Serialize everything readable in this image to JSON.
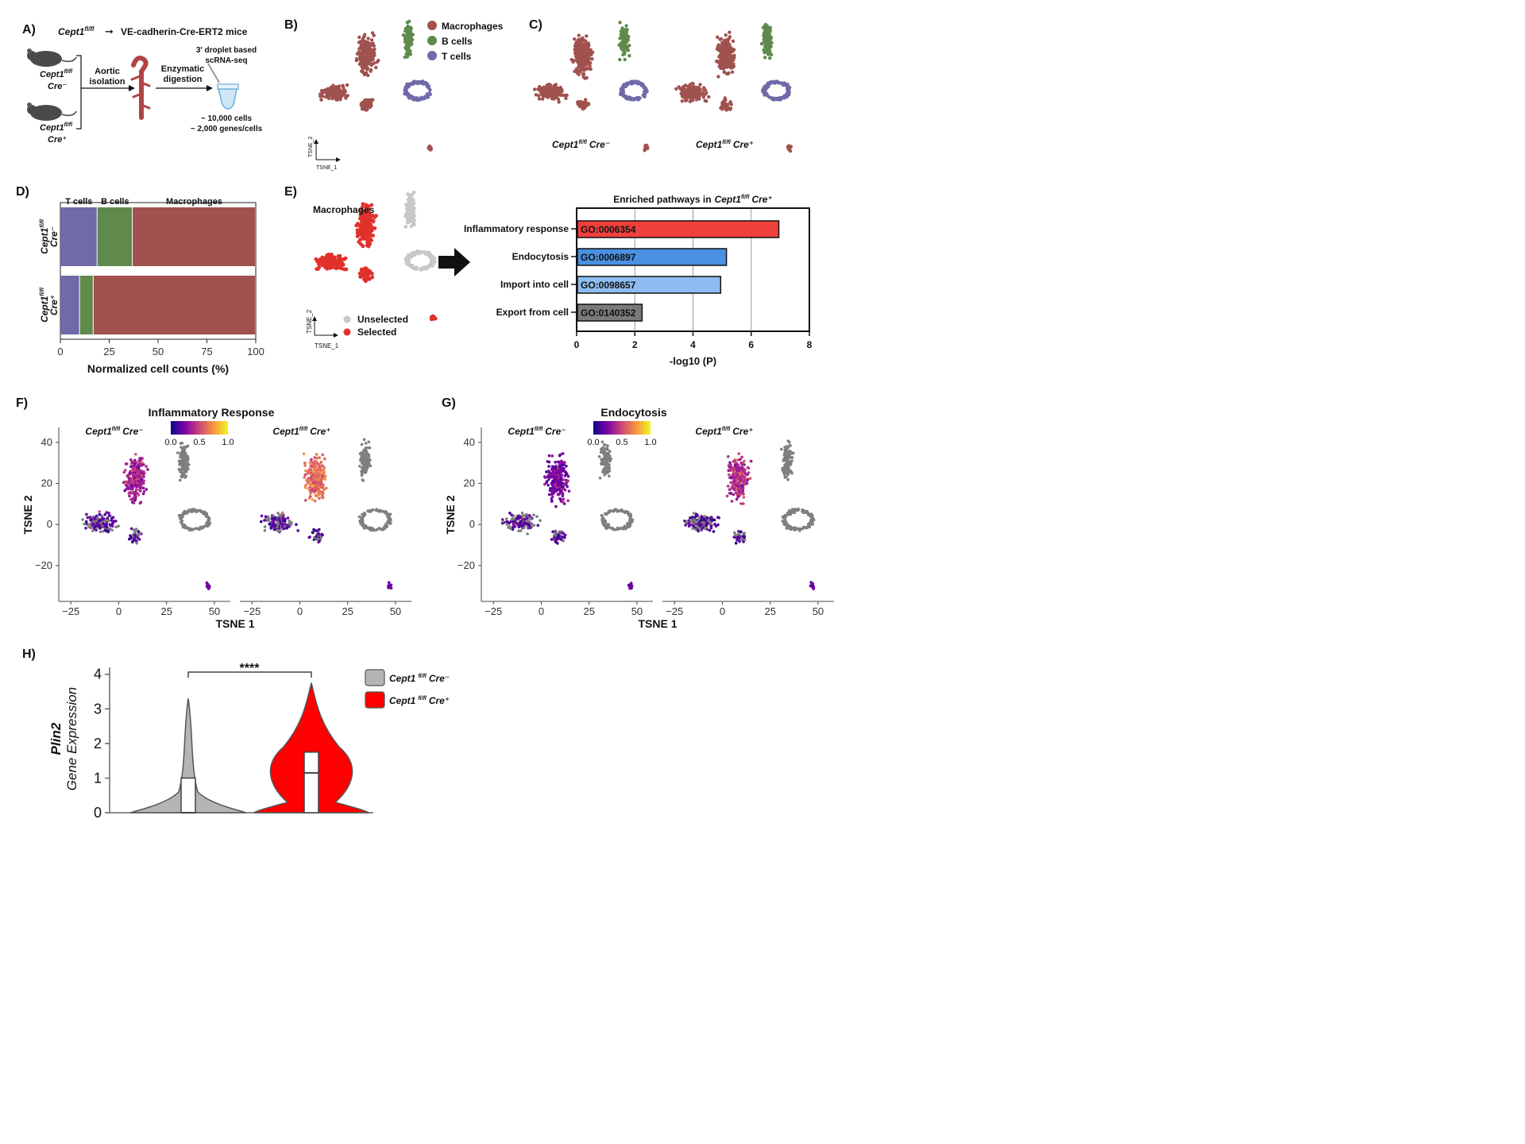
{
  "panels": {
    "A": "A)",
    "B": "B)",
    "C": "C)",
    "D": "D)",
    "E": "E)",
    "F": "F)",
    "G": "G)",
    "H": "H)"
  },
  "panelA": {
    "genotype": "Cept1",
    "fl": "fl/fl",
    "arrow_target": "VE-cadherin-Cre-ERT2 mice",
    "mouse1_gene": "Cept1",
    "mouse1_sup": "fl/fl",
    "mouse1_cre": "Cre⁻",
    "mouse2_gene": "Cept1",
    "mouse2_sup": "fl/fl",
    "mouse2_cre": "Cre⁺",
    "step1_line1": "Aortic",
    "step1_line2": "isolation",
    "step2_line1": "Enzymatic",
    "step2_line2": "digestion",
    "method_line1": "3' droplet based",
    "method_line2": "scRNA-seq",
    "stat1": "~ 10,000 cells",
    "stat2": "~ 2,000 genes/cells"
  },
  "colors": {
    "macrophages": "#a0524f",
    "b_cells": "#5f8a4c",
    "t_cells": "#6f6aa8",
    "unselected": "#c8c8c8",
    "selected": "#e0312b",
    "inflammatory": "#f0403c",
    "endocytosis": "#4a90e2",
    "import": "#8cbcf0",
    "export": "#7a7a7a",
    "violin_cre_neg": "#b5b5b5",
    "violin_cre_pos": "#ff0000"
  },
  "panelB": {
    "legend": [
      "Macrophages",
      "B cells",
      "T cells"
    ],
    "axis_x": "TSNE_1",
    "axis_y": "TSNE_2"
  },
  "panelC": {
    "label_left": "Cept1",
    "label_left_sup": "fl/fl",
    "label_left_cre": "Cre⁻",
    "label_right": "Cept1",
    "label_right_sup": "fl/fl",
    "label_right_cre": "Cre⁺"
  },
  "chart_data": [
    {
      "panel": "D",
      "type": "bar",
      "orientation": "horizontal-stacked",
      "categories": [
        "Cept1 fl/fl Cre⁻",
        "Cept1 fl/fl Cre⁺"
      ],
      "row_gene": [
        "Cept1",
        "Cept1"
      ],
      "row_sup": [
        "fl/fl",
        "fl/fl"
      ],
      "row_cre": [
        "Cre⁻",
        "Cre⁺"
      ],
      "series": [
        {
          "name": "T cells",
          "values": [
            19,
            10
          ]
        },
        {
          "name": "B cells",
          "values": [
            18,
            7
          ]
        },
        {
          "name": "Macrophages",
          "values": [
            63,
            83
          ]
        }
      ],
      "xlabel": "Normalized cell counts (%)",
      "xlim": [
        0,
        100
      ],
      "xticks": [
        0,
        25,
        50,
        75,
        100
      ]
    },
    {
      "panel": "E",
      "type": "bar",
      "orientation": "horizontal",
      "title_prefix": "Enriched pathways in",
      "title_gene": "Cept1",
      "title_sup": "fl/fl",
      "title_cre": "Cre⁺",
      "categories": [
        "Inflammatory response",
        "Endocytosis",
        "Import into cell",
        "Export from cell"
      ],
      "go_ids": [
        "GO:0006354",
        "GO:0006897",
        "GO:0098657",
        "GO:0140352"
      ],
      "values": [
        6.95,
        5.15,
        4.95,
        2.25
      ],
      "xlabel": "-log10 (P)",
      "xlim": [
        0,
        8
      ],
      "xticks": [
        0,
        2,
        4,
        6,
        8
      ],
      "grid": true
    },
    {
      "panel": "F",
      "type": "scatter",
      "title": "Inflammatory Response",
      "colorbar_ticks": [
        "0.0",
        "0.5",
        "1.0"
      ],
      "left_label": "Cept1",
      "left_sup": "fl/fl",
      "left_cre": "Cre⁻",
      "right_label": "Cept1",
      "right_sup": "fl/fl",
      "right_cre": "Cre⁺",
      "xlabel": "TSNE 1",
      "ylabel": "TSNE 2",
      "xticks": [
        "−25",
        "0",
        "25",
        "50"
      ],
      "yticks": [
        "40",
        "20",
        "0",
        "−20"
      ]
    },
    {
      "panel": "G",
      "type": "scatter",
      "title": "Endocytosis",
      "colorbar_ticks": [
        "0.0",
        "0.5",
        "1.0"
      ],
      "left_label": "Cept1",
      "left_sup": "fl/fl",
      "left_cre": "Cre⁻",
      "right_label": "Cept1",
      "right_sup": "fl/fl",
      "right_cre": "Cre⁺",
      "xlabel": "TSNE 1",
      "ylabel": "TSNE 2",
      "xticks": [
        "−25",
        "0",
        "25",
        "50"
      ],
      "yticks": [
        "40",
        "20",
        "0",
        "−20"
      ]
    },
    {
      "panel": "H",
      "type": "violin",
      "ylabel_gene": "Plin2",
      "ylabel": "Gene Expression",
      "ylim": [
        0,
        4.2
      ],
      "yticks": [
        "0",
        "1",
        "2",
        "3",
        "4"
      ],
      "significance": "****",
      "groups": [
        {
          "gene": "Cept1",
          "sup": "fl/fl",
          "cre": "Cre⁻",
          "max": 3.3,
          "q1": 0.0,
          "median": 0.0,
          "q3": 1.0
        },
        {
          "gene": "Cept1",
          "sup": "fl/fl",
          "cre": "Cre⁺",
          "max": 3.75,
          "q1": 0.0,
          "median": 1.15,
          "q3": 1.75
        }
      ]
    }
  ],
  "panelE_tsne": {
    "cluster_label": "Macrophages",
    "legend": [
      "Unselected",
      "Selected"
    ],
    "axis_x": "TSNE_1",
    "axis_y": "TSNE_2"
  }
}
